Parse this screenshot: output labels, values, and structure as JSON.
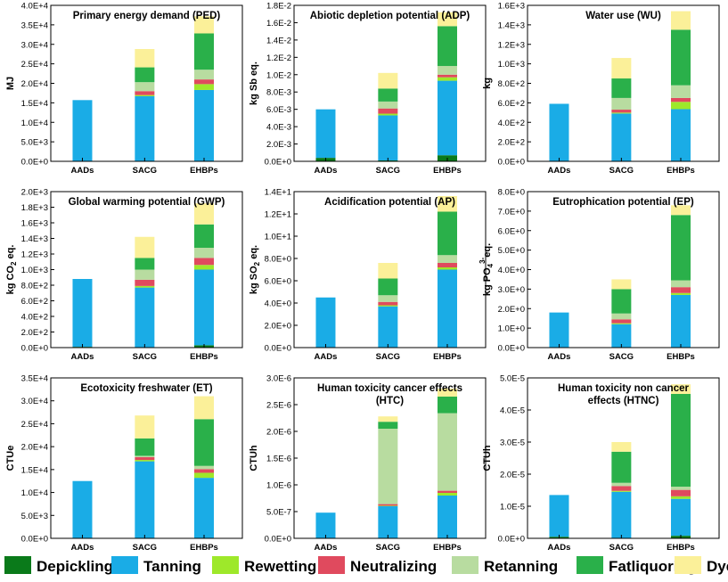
{
  "chart_data": {
    "type": "bar",
    "stacked": true,
    "categories": [
      "AADs",
      "SACG",
      "EHBPs"
    ],
    "legend": [
      {
        "name": "Depickling",
        "color": "#0a7a1a"
      },
      {
        "name": "Tanning",
        "color": "#1aace6"
      },
      {
        "name": "Rewetting",
        "color": "#9ee82a"
      },
      {
        "name": "Neutralizing",
        "color": "#e04a5e"
      },
      {
        "name": "Retanning",
        "color": "#b8dca0"
      },
      {
        "name": "Fatliquoring",
        "color": "#2ab04a"
      },
      {
        "name": "Dyeing",
        "color": "#fbf099"
      }
    ],
    "panels": [
      {
        "title_lines": [
          "Primary energy demand (PED)"
        ],
        "ylabel": "MJ",
        "ylim": [
          0,
          40000
        ],
        "ticks": [
          0,
          5000,
          10000,
          15000,
          20000,
          25000,
          30000,
          35000,
          40000
        ],
        "tick_labels": [
          "0.0E+0",
          "5.0E+3",
          "1.0E+4",
          "1.5E+4",
          "2.0E+4",
          "2.5E+4",
          "3.0E+4",
          "3.5E+4",
          "4.0E+4"
        ],
        "series": [
          {
            "name": "Depickling",
            "values": [
              0,
              0,
              0
            ]
          },
          {
            "name": "Tanning",
            "values": [
              15700,
              16700,
              18300
            ]
          },
          {
            "name": "Rewetting",
            "values": [
              0,
              300,
              1500
            ]
          },
          {
            "name": "Neutralizing",
            "values": [
              0,
              1000,
              1200
            ]
          },
          {
            "name": "Retanning",
            "values": [
              0,
              2300,
              2500
            ]
          },
          {
            "name": "Fatliquoring",
            "values": [
              0,
              3800,
              9300
            ]
          },
          {
            "name": "Dyeing",
            "values": [
              0,
              4700,
              4400
            ]
          }
        ]
      },
      {
        "title_lines": [
          "Abiotic depletion potential (ADP)"
        ],
        "ylabel": "kg Sb eq.",
        "ylim": [
          0,
          0.018
        ],
        "ticks": [
          0,
          0.002,
          0.004,
          0.006,
          0.008,
          0.01,
          0.012,
          0.014,
          0.016,
          0.018
        ],
        "tick_labels": [
          "0.0E+0",
          "2.0E-3",
          "4.0E-3",
          "6.0E-3",
          "8.0E-3",
          "1.0E-2",
          "1.2E-2",
          "1.4E-2",
          "1.6E-2",
          "1.8E-2"
        ],
        "series": [
          {
            "name": "Depickling",
            "values": [
              0.0004,
              0.0001,
              0.0007
            ]
          },
          {
            "name": "Tanning",
            "values": [
              0.0056,
              0.0052,
              0.0086
            ]
          },
          {
            "name": "Rewetting",
            "values": [
              0,
              0.0002,
              0.0004
            ]
          },
          {
            "name": "Neutralizing",
            "values": [
              0,
              0.0006,
              0.0003
            ]
          },
          {
            "name": "Retanning",
            "values": [
              0,
              0.0008,
              0.001
            ]
          },
          {
            "name": "Fatliquoring",
            "values": [
              0,
              0.0015,
              0.0046
            ]
          },
          {
            "name": "Dyeing",
            "values": [
              0,
              0.0018,
              0.0016
            ]
          }
        ]
      },
      {
        "title_lines": [
          "Water use (WU)"
        ],
        "ylabel": "kg",
        "ylim": [
          0,
          1600
        ],
        "ticks": [
          0,
          200,
          400,
          600,
          800,
          1000,
          1200,
          1400,
          1600
        ],
        "tick_labels": [
          "0.0E+0",
          "2.0E+2",
          "4.0E+2",
          "6.0E+2",
          "8.0E+2",
          "1.0E+3",
          "1.2E+3",
          "1.4E+3",
          "1.6E+3"
        ],
        "series": [
          {
            "name": "Depickling",
            "values": [
              0,
              0,
              0
            ]
          },
          {
            "name": "Tanning",
            "values": [
              590,
              490,
              535
            ]
          },
          {
            "name": "Rewetting",
            "values": [
              0,
              10,
              75
            ]
          },
          {
            "name": "Neutralizing",
            "values": [
              0,
              30,
              40
            ]
          },
          {
            "name": "Retanning",
            "values": [
              0,
              120,
              130
            ]
          },
          {
            "name": "Fatliquoring",
            "values": [
              0,
              200,
              570
            ]
          },
          {
            "name": "Dyeing",
            "values": [
              0,
              210,
              190
            ]
          }
        ]
      },
      {
        "title_lines": [
          "Global warming potential (GWP)"
        ],
        "ylabel_parts": [
          [
            "kg CO",
            0
          ],
          [
            "2",
            -1
          ],
          [
            " eq.",
            0
          ]
        ],
        "ylim": [
          0,
          2000
        ],
        "ticks": [
          0,
          200,
          400,
          600,
          800,
          1000,
          1200,
          1400,
          1600,
          1800,
          2000
        ],
        "tick_labels": [
          "0.0E+0",
          "2.0E+2",
          "4.0E+2",
          "6.0E+2",
          "8.0E+2",
          "1.0E+3",
          "1.2E+3",
          "1.4E+3",
          "1.6E+3",
          "1.8E+3",
          "2.0E+3"
        ],
        "series": [
          {
            "name": "Depickling",
            "values": [
              10,
              0,
              30
            ]
          },
          {
            "name": "Tanning",
            "values": [
              870,
              770,
              970
            ]
          },
          {
            "name": "Rewetting",
            "values": [
              0,
              20,
              60
            ]
          },
          {
            "name": "Neutralizing",
            "values": [
              0,
              80,
              90
            ]
          },
          {
            "name": "Retanning",
            "values": [
              0,
              130,
              130
            ]
          },
          {
            "name": "Fatliquoring",
            "values": [
              0,
              150,
              300
            ]
          },
          {
            "name": "Dyeing",
            "values": [
              0,
              270,
              270
            ]
          }
        ]
      },
      {
        "title_lines": [
          "Acidification potential (AP)"
        ],
        "ylabel_parts": [
          [
            "kg SO",
            0
          ],
          [
            "2",
            -1
          ],
          [
            " eq.",
            0
          ]
        ],
        "ylim": [
          0,
          14
        ],
        "ticks": [
          0,
          2,
          4,
          6,
          8,
          10,
          12,
          14
        ],
        "tick_labels": [
          "0.0E+0",
          "2.0E+0",
          "4.0E+0",
          "6.0E+0",
          "8.0E+0",
          "1.0E+1",
          "1.2E+1",
          "1.4E+1"
        ],
        "series": [
          {
            "name": "Depickling",
            "values": [
              0,
              0,
              0
            ]
          },
          {
            "name": "Tanning",
            "values": [
              4.5,
              3.7,
              7.0
            ]
          },
          {
            "name": "Rewetting",
            "values": [
              0,
              0.1,
              0.2
            ]
          },
          {
            "name": "Neutralizing",
            "values": [
              0,
              0.3,
              0.4
            ]
          },
          {
            "name": "Retanning",
            "values": [
              0,
              0.6,
              0.7
            ]
          },
          {
            "name": "Fatliquoring",
            "values": [
              0,
              1.5,
              3.9
            ]
          },
          {
            "name": "Dyeing",
            "values": [
              0,
              1.4,
              1.4
            ]
          }
        ]
      },
      {
        "title_lines": [
          "Eutrophication potential (EP)"
        ],
        "ylabel_parts": [
          [
            "kg PO",
            0
          ],
          [
            "4",
            -1
          ],
          [
            "3-",
            1
          ],
          [
            "eq.",
            0
          ]
        ],
        "ylim": [
          0,
          8
        ],
        "ticks": [
          0,
          1,
          2,
          3,
          4,
          5,
          6,
          7,
          8
        ],
        "tick_labels": [
          "0.0E+0",
          "1.0E+0",
          "2.0E+0",
          "3.0E+0",
          "4.0E+0",
          "5.0E+0",
          "6.0E+0",
          "7.0E+0",
          "8.0E+0"
        ],
        "series": [
          {
            "name": "Depickling",
            "values": [
              0,
              0,
              0
            ]
          },
          {
            "name": "Tanning",
            "values": [
              1.8,
              1.2,
              2.7
            ]
          },
          {
            "name": "Rewetting",
            "values": [
              0,
              0.05,
              0.1
            ]
          },
          {
            "name": "Neutralizing",
            "values": [
              0,
              0.2,
              0.3
            ]
          },
          {
            "name": "Retanning",
            "values": [
              0,
              0.3,
              0.35
            ]
          },
          {
            "name": "Fatliquoring",
            "values": [
              0,
              1.25,
              3.35
            ]
          },
          {
            "name": "Dyeing",
            "values": [
              0,
              0.5,
              0.5
            ]
          }
        ]
      },
      {
        "title_lines": [
          "Ecotoxicity freshwater (ET)"
        ],
        "ylabel": "CTUe",
        "ylim": [
          0,
          35000
        ],
        "ticks": [
          0,
          5000,
          10000,
          15000,
          20000,
          25000,
          30000,
          35000
        ],
        "tick_labels": [
          "0.0E+0",
          "5.0E+3",
          "1.0E+4",
          "1.5E+4",
          "2.0E+4",
          "2.5E+4",
          "3.0E+4",
          "3.5E+4"
        ],
        "series": [
          {
            "name": "Depickling",
            "values": [
              0,
              0,
              0
            ]
          },
          {
            "name": "Tanning",
            "values": [
              12500,
              16800,
              13200
            ]
          },
          {
            "name": "Rewetting",
            "values": [
              0,
              300,
              1100
            ]
          },
          {
            "name": "Neutralizing",
            "values": [
              0,
              600,
              800
            ]
          },
          {
            "name": "Retanning",
            "values": [
              0,
              300,
              700
            ]
          },
          {
            "name": "Fatliquoring",
            "values": [
              0,
              3800,
              10200
            ]
          },
          {
            "name": "Dyeing",
            "values": [
              0,
              5000,
              5000
            ]
          }
        ]
      },
      {
        "title_lines": [
          "Human toxicity cancer effects",
          "(HTC)"
        ],
        "ylabel": "CTUh",
        "ylim": [
          0,
          3e-06
        ],
        "ticks": [
          0,
          5e-07,
          1e-06,
          1.5e-06,
          2e-06,
          2.5e-06,
          3e-06
        ],
        "tick_labels": [
          "0.0E+0",
          "5.0E-7",
          "1.0E-6",
          "1.5E-6",
          "2.0E-6",
          "2.5E-6",
          "3.0E-6"
        ],
        "series": [
          {
            "name": "Depickling",
            "values": [
              0,
              0,
              0
            ]
          },
          {
            "name": "Tanning",
            "values": [
              4.8e-07,
              6e-07,
              8e-07
            ]
          },
          {
            "name": "Rewetting",
            "values": [
              0,
              1e-08,
              5e-08
            ]
          },
          {
            "name": "Neutralizing",
            "values": [
              0,
              3e-08,
              4e-08
            ]
          },
          {
            "name": "Retanning",
            "values": [
              0,
              1.41e-06,
              1.45e-06
            ]
          },
          {
            "name": "Fatliquoring",
            "values": [
              0,
              1.3e-07,
              3.1e-07
            ]
          },
          {
            "name": "Dyeing",
            "values": [
              0,
              1e-07,
              1.5e-07
            ]
          }
        ]
      },
      {
        "title_lines": [
          "Human toxicity non cancer",
          "effects (HTNC)"
        ],
        "ylabel": "CTUh",
        "ylim": [
          0,
          5e-05
        ],
        "ticks": [
          0,
          1e-05,
          2e-05,
          3e-05,
          4e-05,
          5e-05
        ],
        "tick_labels": [
          "0.0E+0",
          "1.0E-5",
          "2.0E-5",
          "3.0E-5",
          "4.0E-5",
          "5.0E-5"
        ],
        "series": [
          {
            "name": "Depickling",
            "values": [
              5e-07,
              0,
              8e-07
            ]
          },
          {
            "name": "Tanning",
            "values": [
              1.3e-05,
              1.45e-05,
              1.15e-05
            ]
          },
          {
            "name": "Rewetting",
            "values": [
              0,
              3e-07,
              8e-07
            ]
          },
          {
            "name": "Neutralizing",
            "values": [
              0,
              1.5e-06,
              2e-06
            ]
          },
          {
            "name": "Retanning",
            "values": [
              0,
              1e-06,
              1e-06
            ]
          },
          {
            "name": "Fatliquoring",
            "values": [
              0,
              9.7e-06,
              2.89e-05
            ]
          },
          {
            "name": "Dyeing",
            "values": [
              0,
              3e-06,
              3e-06
            ]
          }
        ]
      }
    ]
  }
}
